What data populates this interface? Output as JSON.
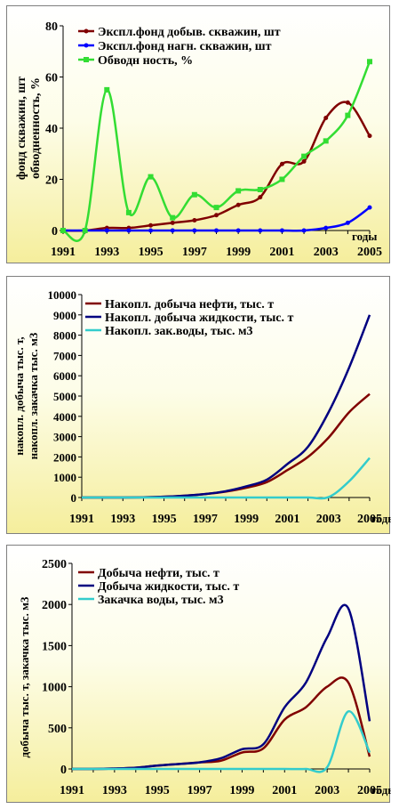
{
  "chart_data": [
    {
      "type": "line",
      "ylabel": "фонд скважин, шт обводненность, %",
      "xlabel": "годы",
      "ylim": [
        0,
        80
      ],
      "yticks": [
        0,
        20,
        40,
        60,
        80
      ],
      "xlim": [
        1991,
        2005
      ],
      "xticks": [
        1991,
        1993,
        1995,
        1997,
        1999,
        2001,
        2003,
        2005
      ],
      "legend": "top-left",
      "series": [
        {
          "name": "Экспл.фонд добыв. скважин, шт",
          "color": "#800000",
          "marker": "dot",
          "x": [
            1991,
            1992,
            1993,
            1994,
            1995,
            1996,
            1997,
            1998,
            1999,
            2000,
            2001,
            2002,
            2003,
            2004,
            2005
          ],
          "y": [
            0,
            0,
            1,
            1,
            2,
            3,
            4,
            6,
            10,
            13,
            26,
            27,
            44,
            50,
            37
          ]
        },
        {
          "name": "Экспл.фонд нагн. скважин, шт",
          "color": "#0000ff",
          "marker": "dot",
          "x": [
            1991,
            1992,
            1993,
            1994,
            1995,
            1996,
            1997,
            1998,
            1999,
            2000,
            2001,
            2002,
            2003,
            2004,
            2005
          ],
          "y": [
            0,
            0,
            0,
            0,
            0,
            0,
            0,
            0,
            0,
            0,
            0,
            0,
            1,
            3,
            9
          ]
        },
        {
          "name": "Обводн ность, %",
          "color": "#33dd33",
          "marker": "square",
          "x": [
            1991,
            1992,
            1993,
            1994,
            1995,
            1996,
            1997,
            1998,
            1999,
            2000,
            2001,
            2002,
            2003,
            2004,
            2005
          ],
          "y": [
            0,
            0,
            55,
            7,
            21,
            5,
            14,
            9,
            15.5,
            16,
            20,
            29,
            35,
            45,
            66
          ]
        }
      ]
    },
    {
      "type": "line",
      "ylabel": "накопл. добыча тыс. т, накопл. закачка тыс. м3",
      "xlabel": "годы",
      "ylim": [
        0,
        10000
      ],
      "yticks": [
        0,
        1000,
        2000,
        3000,
        4000,
        5000,
        6000,
        7000,
        8000,
        9000,
        10000
      ],
      "xlim": [
        1991,
        2005
      ],
      "xticks": [
        1991,
        1993,
        1995,
        1997,
        1999,
        2001,
        2003,
        2005
      ],
      "legend": "top-left",
      "series": [
        {
          "name": "Накопл. добыча нефти, тыс. т",
          "color": "#800000",
          "x": [
            1991,
            1992,
            1993,
            1994,
            1995,
            1996,
            1997,
            1998,
            1999,
            2000,
            2001,
            2002,
            2003,
            2004,
            2005
          ],
          "y": [
            0,
            0,
            0,
            10,
            40,
            90,
            170,
            290,
            480,
            760,
            1350,
            2000,
            2950,
            4200,
            5100
          ]
        },
        {
          "name": "Накопл. добыча жидкости, тыс. т",
          "color": "#000080",
          "x": [
            1991,
            1992,
            1993,
            1994,
            1995,
            1996,
            1997,
            1998,
            1999,
            2000,
            2001,
            2002,
            2003,
            2004,
            2005
          ],
          "y": [
            0,
            0,
            0,
            10,
            40,
            90,
            170,
            310,
            550,
            880,
            1650,
            2500,
            4200,
            6400,
            9000
          ]
        },
        {
          "name": "Накопл. зак.воды, тыс. м3",
          "color": "#33cccc",
          "x": [
            1991,
            1992,
            1993,
            1994,
            1995,
            1996,
            1997,
            1998,
            1999,
            2000,
            2001,
            2002,
            2003,
            2004,
            2005
          ],
          "y": [
            0,
            0,
            0,
            0,
            0,
            0,
            0,
            0,
            0,
            0,
            0,
            0,
            20,
            800,
            1950
          ]
        }
      ]
    },
    {
      "type": "line",
      "ylabel": "добыча тыс. т, закачка тыс. м3",
      "xlabel": "годы",
      "ylim": [
        0,
        2500
      ],
      "yticks": [
        0,
        500,
        1000,
        1500,
        2000,
        2500
      ],
      "xlim": [
        1991,
        2005
      ],
      "xticks": [
        1991,
        1993,
        1995,
        1997,
        1999,
        2001,
        2003,
        2005
      ],
      "legend": "top-left",
      "series": [
        {
          "name": "Добыча нефти, тыс. т",
          "color": "#800000",
          "x": [
            1991,
            1992,
            1993,
            1994,
            1995,
            1996,
            1997,
            1998,
            1999,
            2000,
            2001,
            2002,
            2003,
            2004,
            2005
          ],
          "y": [
            0,
            0,
            5,
            15,
            40,
            60,
            80,
            100,
            200,
            250,
            600,
            750,
            1000,
            1050,
            150
          ]
        },
        {
          "name": "Добыча жидкости, тыс. т",
          "color": "#000080",
          "x": [
            1991,
            1992,
            1993,
            1994,
            1995,
            1996,
            1997,
            1998,
            1999,
            2000,
            2001,
            2002,
            2003,
            2004,
            2005
          ],
          "y": [
            0,
            0,
            5,
            15,
            40,
            60,
            80,
            130,
            240,
            300,
            750,
            1050,
            1600,
            1950,
            580
          ]
        },
        {
          "name": "Закачка воды, тыс. м3",
          "color": "#33cccc",
          "x": [
            1991,
            1992,
            1993,
            1994,
            1995,
            1996,
            1997,
            1998,
            1999,
            2000,
            2001,
            2002,
            2003,
            2004,
            2005
          ],
          "y": [
            0,
            0,
            0,
            0,
            0,
            0,
            0,
            0,
            0,
            0,
            0,
            0,
            20,
            700,
            200
          ]
        }
      ]
    }
  ]
}
